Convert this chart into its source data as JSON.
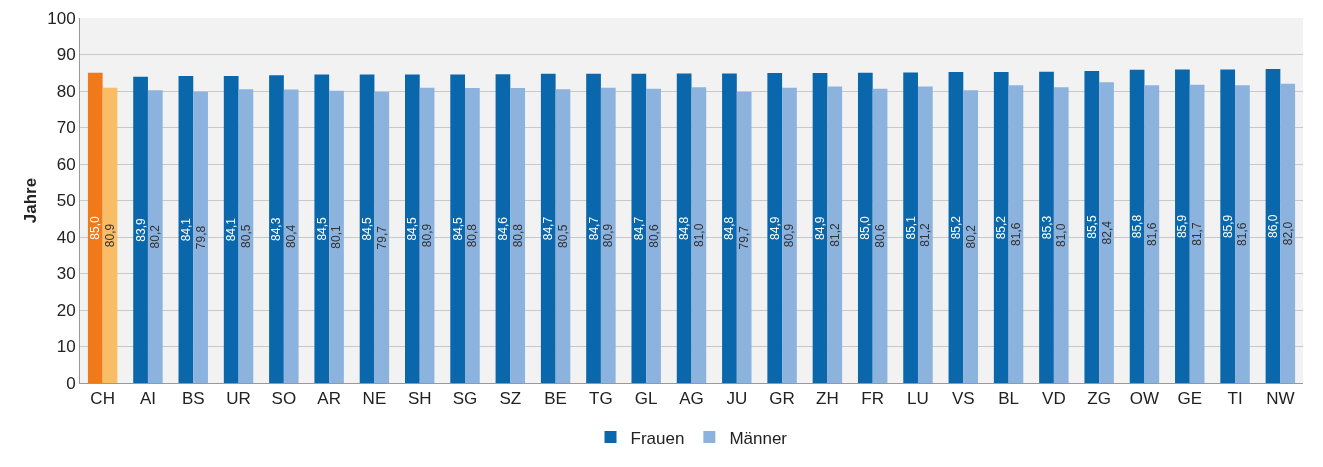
{
  "chart_data": {
    "type": "bar",
    "ylabel": "Jahre",
    "categories": [
      "CH",
      "AI",
      "BS",
      "UR",
      "SO",
      "AR",
      "NE",
      "SH",
      "SG",
      "SZ",
      "BE",
      "TG",
      "GL",
      "AG",
      "JU",
      "GR",
      "ZH",
      "FR",
      "LU",
      "VS",
      "BL",
      "VD",
      "ZG",
      "OW",
      "GE",
      "TI",
      "NW"
    ],
    "series": [
      {
        "name": "Frauen",
        "color": "#0a67ab",
        "colors": [
          "#f07a1a",
          "#0a67ab",
          "#0a67ab",
          "#0a67ab",
          "#0a67ab",
          "#0a67ab",
          "#0a67ab",
          "#0a67ab",
          "#0a67ab",
          "#0a67ab",
          "#0a67ab",
          "#0a67ab",
          "#0a67ab",
          "#0a67ab",
          "#0a67ab",
          "#0a67ab",
          "#0a67ab",
          "#0a67ab",
          "#0a67ab",
          "#0a67ab",
          "#0a67ab",
          "#0a67ab",
          "#0a67ab",
          "#0a67ab",
          "#0a67ab",
          "#0a67ab",
          "#0a67ab"
        ],
        "values": [
          85.0,
          83.9,
          84.1,
          84.1,
          84.3,
          84.5,
          84.5,
          84.5,
          84.5,
          84.6,
          84.7,
          84.7,
          84.7,
          84.8,
          84.8,
          84.9,
          84.9,
          85.0,
          85.1,
          85.2,
          85.2,
          85.3,
          85.5,
          85.8,
          85.9,
          85.9,
          86.0
        ],
        "value_labels": [
          "85,0",
          "83,9",
          "84,1",
          "84,1",
          "84,3",
          "84,5",
          "84,5",
          "84,5",
          "84,5",
          "84,6",
          "84,7",
          "84,7",
          "84,7",
          "84,8",
          "84,8",
          "84,9",
          "84,9",
          "85,0",
          "85,1",
          "85,2",
          "85,2",
          "85,3",
          "85,5",
          "85,8",
          "85,9",
          "85,9",
          "86,0"
        ]
      },
      {
        "name": "Männer",
        "color": "#8cb2de",
        "colors": [
          "#f9bd68",
          "#8cb2de",
          "#8cb2de",
          "#8cb2de",
          "#8cb2de",
          "#8cb2de",
          "#8cb2de",
          "#8cb2de",
          "#8cb2de",
          "#8cb2de",
          "#8cb2de",
          "#8cb2de",
          "#8cb2de",
          "#8cb2de",
          "#8cb2de",
          "#8cb2de",
          "#8cb2de",
          "#8cb2de",
          "#8cb2de",
          "#8cb2de",
          "#8cb2de",
          "#8cb2de",
          "#8cb2de",
          "#8cb2de",
          "#8cb2de",
          "#8cb2de",
          "#8cb2de"
        ],
        "values": [
          80.9,
          80.2,
          79.8,
          80.5,
          80.4,
          80.1,
          79.7,
          80.9,
          80.8,
          80.8,
          80.5,
          80.9,
          80.6,
          81.0,
          79.7,
          80.9,
          81.2,
          80.6,
          81.2,
          80.2,
          81.6,
          81.0,
          82.4,
          81.6,
          81.7,
          81.6,
          82.0
        ],
        "value_labels": [
          "80,9",
          "80,2",
          "79,8",
          "80,5",
          "80,4",
          "80,1",
          "79,7",
          "80,9",
          "80,8",
          "80,8",
          "80,5",
          "80,9",
          "80,6",
          "81,0",
          "79,7",
          "80,9",
          "81,2",
          "80,6",
          "81,2",
          "80,2",
          "81,6",
          "81,0",
          "82,4",
          "81,6",
          "81,7",
          "81,6",
          "82,0"
        ]
      }
    ],
    "ylim": [
      0,
      100
    ],
    "yticks": [
      0,
      10,
      20,
      30,
      40,
      50,
      60,
      70,
      80,
      90,
      100
    ],
    "grid": "y",
    "legend": "bottom"
  }
}
